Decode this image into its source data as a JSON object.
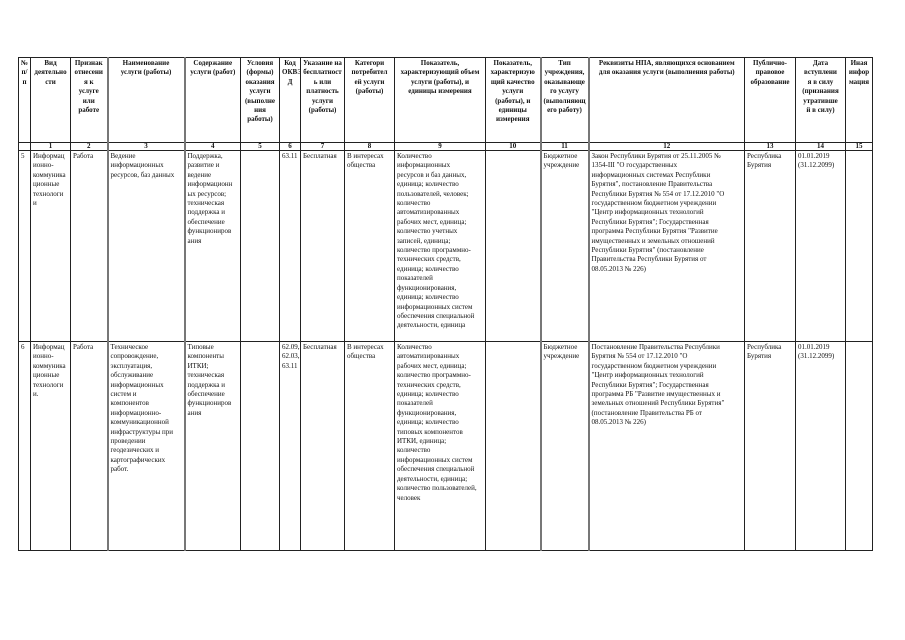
{
  "headers": [
    "№\nп/\nп",
    "Вид\nдеятельно\nсти",
    "Признак\nотнесени\nя к\nуслуге\nили\nработе",
    "Наименование\nуслуги (работы)",
    "Содержание\nуслуги (работ)",
    "Условия\n(формы)\nоказания\nуслуги\n(выполне\nния\nработы)",
    "Код\nОКВЭ\nД",
    "Указание на\nбесплатност\nь или\nплатность\nуслуги\n(работы)",
    "Категори\nпотребител\nей услуги\n(работы)",
    "Показатель,\nхарактеризующий объем\nуслуги (работы), и\nединицы измерения",
    "Показатель,\nхарактеризую\nщий качество\nуслуги\n(работы), и\nединицы\nизмерения",
    "Тип\nучреждения,\nоказывающе\nго услугу\n(выполняющ\nего работу)",
    "Реквизиты НПА, являющихся основанием\nдля оказания услуги (выполнения работы)",
    "Публично-\nправовое\nобразование",
    "Дата\nвступлени\nя в силу\n(признания\nутратившe\nй в силу)",
    "Иная\nинфор\nмация"
  ],
  "column_numbers": [
    "",
    "1",
    "2",
    "3",
    "4",
    "5",
    "6",
    "7",
    "8",
    "9",
    "10",
    "11",
    "12",
    "13",
    "14",
    "15"
  ],
  "rows": [
    {
      "cells": [
        "5",
        "Информац\nионно-\nкоммуника\nционные\nтехнологи\nи",
        "Работа",
        "Ведение\nинформационных\nресурсов, баз данных",
        "Поддержка,\nразвитие и\nведение\nинформационн\nых ресурсов;\nтехническая\nподдержка и\nобеспечение\nфункциониров\nания",
        "",
        "63.11",
        "Бесплатная",
        "В интересах\nобщества",
        "Количество\nинформационных\nресурсов и баз данных,\nединица; количество\nпользователей, человек;\nколичество\nавтоматизированных\nрабочих мест, единица;\nколичество учетных\nзаписей, единица;\nколичество программно-\nтехнических средств,\nединица; количество\nпоказателей\nфункционирования,\nединица; количество\nинформационных систем\nобеспечения специальной\nдеятельности, единица",
        "",
        "Бюджетное\nучреждение",
        "Закон Республики Бурятия от 25.11.2005 №\n1354-III \"О государственных\nинформационных системах Республики\nБурятия\", постановление Правительства\nРеспублики Бурятия № 554 от 17.12.2010 \"О\nгосударственном бюджетном учреждении\n\"Центр информационных технологий\nРеспублики Бурятия\"; Государственная\nпрограмма Республики Бурятия \"Развитие\nимущественных и земельных отношений\nРеспублики Бурятия\" (постановление\nПравительства Республики Бурятия от\n08.05.2013 № 226)",
        "Республика\nБурятия",
        "01.01.2019\n(31.12.2099)",
        ""
      ]
    },
    {
      "cells": [
        "6",
        "Информац\nионно-\nкоммуника\nционные\nтехнологи\nи.",
        "Работа",
        "Техническое\nсопровождение,\nэксплуатация,\nобслуживание\nинформационных\nсистем и\nкомпонентов\nинформационно-\nкоммуникационной\nинфраструктуры при\nпроведении\nгеодезических и\nкартографических\nработ.",
        "Типовые\nкомпоненты\nИТКИ;\nтехническая\nподдержка и\nобеспечение\nфункциониров\nания",
        "",
        "62.09,\n62.03,\n63.11",
        "Бесплатная",
        "В интересах\nобщества",
        "Количество\nавтоматизированных\nрабочих мест, единица;\nколичество программно-\nтехнических средств,\nединица; количество\nпоказателей\nфункционирования,\nединица; количество\nтиповых компонентов\nИТКИ, единица;\nколичество\nинформационных систем\nобеспечения специальной\nдеятельности, единица;\nколичество пользователей,\nчеловек",
        "",
        "Бюджетное\nучреждение",
        "Постановление Правительства Республики\nБурятия № 554 от 17.12.2010 \"О\nгосударственном бюджетном учреждении\n\"Центр информационных технологий\nРеспублики Бурятия\"; Государственная\nпрограмма РБ \"Развитие имущественных и\nземельных отношений Республики Бурятия\"\n(постановление Правительства РБ от\n08.05.2013 № 226)",
        "Республика\nБурятия",
        "01.01.2019\n(31.12.2099)",
        ""
      ]
    }
  ]
}
